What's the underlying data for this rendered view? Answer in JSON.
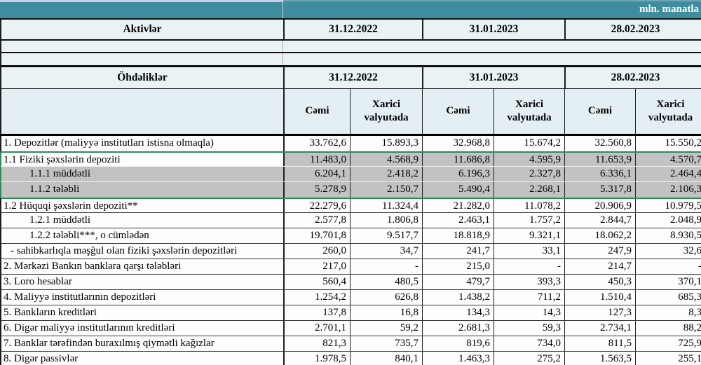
{
  "unit_label": "mln. manatla",
  "assets": {
    "title": "Aktivlər",
    "dates": [
      "31.12.2022",
      "31.01.2023",
      "28.02.2023"
    ]
  },
  "liabilities": {
    "title": "Öhdəliklər",
    "dates": [
      "31.12.2022",
      "31.01.2023",
      "28.02.2023"
    ],
    "subcolumns": {
      "total": "Cəmi",
      "foreign": "Xarici valyutada"
    }
  },
  "rows": [
    {
      "label": "1. Depozitlər (maliyyə institutları istisna olmaqla)",
      "indent": 0,
      "bg": "white",
      "values": [
        "33.762,6",
        "15.893,3",
        "32.968,8",
        "15.674,2",
        "32.560,8",
        "15.550,2"
      ]
    },
    {
      "label": "1.1 Fiziki şəxslərin depoziti",
      "indent": 0,
      "bg": "gray_values",
      "values": [
        "11.483,0",
        "4.568,9",
        "11.686,8",
        "4.595,9",
        "11.653,9",
        "4.570,7"
      ]
    },
    {
      "label": "1.1.1 müddətli",
      "indent": 1,
      "bg": "gray",
      "values": [
        "6.204,1",
        "2.418,2",
        "6.196,3",
        "2.327,8",
        "6.336,1",
        "2.464,4"
      ]
    },
    {
      "label": "1.1.2 tələbli",
      "indent": 1,
      "bg": "gray",
      "values": [
        "5.278,9",
        "2.150,7",
        "5.490,4",
        "2.268,1",
        "5.317,8",
        "2.106,3"
      ]
    },
    {
      "label": "1.2 Hüquqi şəxslərin depoziti**",
      "indent": 0,
      "bg": "white",
      "values": [
        "22.279,6",
        "11.324,4",
        "21.282,0",
        "11.078,2",
        "20.906,9",
        "10.979,5"
      ]
    },
    {
      "label": "1.2.1 müddətli",
      "indent": 1,
      "bg": "white",
      "values": [
        "2.577,8",
        "1.806,8",
        "2.463,1",
        "1.757,2",
        "2.844,7",
        "2.048,9"
      ]
    },
    {
      "label": "1.2.2 tələbli***, o cümlədən",
      "indent": 1,
      "bg": "white",
      "values": [
        "19.701,8",
        "9.517,7",
        "18.818,9",
        "9.321,1",
        "18.062,2",
        "8.930,5"
      ]
    },
    {
      "label": "- sahibkarlıqla məşğul olan fiziki şəxslərin depozitləri",
      "indent": 2,
      "bg": "white",
      "values": [
        "260,0",
        "34,7",
        "241,7",
        "33,1",
        "247,9",
        "32,6"
      ]
    },
    {
      "label": "2. Mərkəzi Bankın banklara qarşı tələbləri",
      "indent": 0,
      "bg": "white",
      "values": [
        "217,0",
        "-",
        "215,0",
        "-",
        "214,7",
        "-"
      ]
    },
    {
      "label": "3. Loro hesablar",
      "indent": 0,
      "bg": "white",
      "values": [
        "560,4",
        "480,5",
        "479,7",
        "393,3",
        "450,3",
        "370,1"
      ]
    },
    {
      "label": "4. Maliyyə institutlarının depozitləri",
      "indent": 0,
      "bg": "white",
      "values": [
        "1.254,2",
        "626,8",
        "1.438,2",
        "711,2",
        "1.510,4",
        "685,3"
      ]
    },
    {
      "label": "5. Bankların kreditləri",
      "indent": 0,
      "bg": "white",
      "values": [
        "137,8",
        "16,8",
        "134,3",
        "14,3",
        "127,3",
        "8,3"
      ]
    },
    {
      "label": "6. Digər maliyyə institutlarının kreditləri",
      "indent": 0,
      "bg": "white",
      "values": [
        "2.701,1",
        "59,2",
        "2.681,3",
        "59,3",
        "2.734,1",
        "88,2"
      ]
    },
    {
      "label": "7. Banklar tərəfindən buraxılmış qiymətli kağızlar",
      "indent": 0,
      "bg": "white",
      "values": [
        "821,3",
        "735,7",
        "819,6",
        "734,0",
        "811,5",
        "725,9"
      ]
    },
    {
      "label": "8. Digər passivlər",
      "indent": 0,
      "bg": "white",
      "values": [
        "1.978,5",
        "840,1",
        "1.463,3",
        "275,2",
        "1.563,5",
        "255,1"
      ]
    }
  ],
  "highlight_block": {
    "start": 1,
    "end": 3
  },
  "colors": {
    "teal_band": "#3e8c9e",
    "header_bg": "#e9f2f5",
    "highlight_gray": "#c2c2c2",
    "selection_green": "#2f8a5a"
  }
}
